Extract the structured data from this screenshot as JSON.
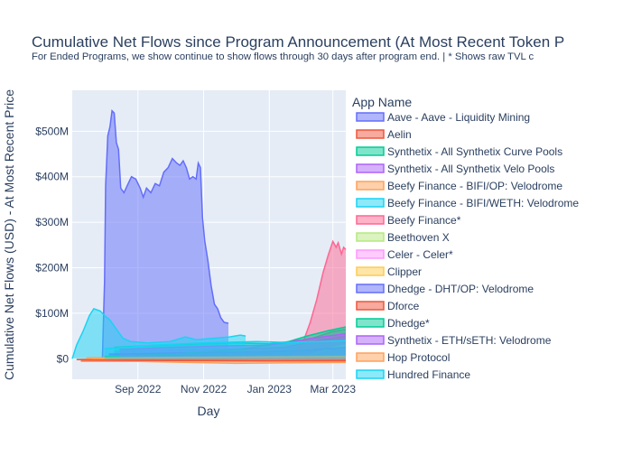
{
  "chart_data": {
    "type": "area",
    "title": "Cumulative Net Flows since Program Announcement (At Most Recent Token P",
    "subtitle": "For Ended Programs, we show continue to show flows through 30 days after program end. | * Shows raw TVL c",
    "xlabel": "Day",
    "ylabel": "Cumulative Net Flows (USD) - At Most Recent Price",
    "x_range": [
      "2022-07-02",
      "2023-03-13"
    ],
    "ylim": [
      -45,
      590
    ],
    "y_unit": "million USD",
    "x_ticks": [
      {
        "date": "2022-09-01",
        "label": "Sep 2022"
      },
      {
        "date": "2022-11-01",
        "label": "Nov 2022"
      },
      {
        "date": "2023-01-01",
        "label": "Jan 2023"
      },
      {
        "date": "2023-03-01",
        "label": "Mar 2023"
      }
    ],
    "y_ticks": [
      {
        "value": 0,
        "label": "$0"
      },
      {
        "value": 100,
        "label": "$100M"
      },
      {
        "value": 200,
        "label": "$200M"
      },
      {
        "value": 300,
        "label": "$300M"
      },
      {
        "value": 400,
        "label": "$400M"
      },
      {
        "value": 500,
        "label": "$500M"
      }
    ],
    "legend_title": "App Name",
    "legend_position": "right",
    "grid": true,
    "series": [
      {
        "name": "Aave - Aave - Liquidity Mining",
        "color": "#636efa",
        "points": [
          [
            "2022-07-30",
            0
          ],
          [
            "2022-08-01",
            170
          ],
          [
            "2022-08-02",
            380
          ],
          [
            "2022-08-04",
            490
          ],
          [
            "2022-08-06",
            510
          ],
          [
            "2022-08-08",
            545
          ],
          [
            "2022-08-10",
            540
          ],
          [
            "2022-08-12",
            475
          ],
          [
            "2022-08-14",
            460
          ],
          [
            "2022-08-16",
            375
          ],
          [
            "2022-08-19",
            365
          ],
          [
            "2022-08-22",
            380
          ],
          [
            "2022-08-26",
            400
          ],
          [
            "2022-08-30",
            395
          ],
          [
            "2022-09-03",
            375
          ],
          [
            "2022-09-06",
            355
          ],
          [
            "2022-09-09",
            375
          ],
          [
            "2022-09-13",
            365
          ],
          [
            "2022-09-17",
            385
          ],
          [
            "2022-09-21",
            380
          ],
          [
            "2022-09-25",
            410
          ],
          [
            "2022-09-29",
            420
          ],
          [
            "2022-10-03",
            440
          ],
          [
            "2022-10-07",
            430
          ],
          [
            "2022-10-10",
            425
          ],
          [
            "2022-10-13",
            435
          ],
          [
            "2022-10-16",
            420
          ],
          [
            "2022-10-19",
            395
          ],
          [
            "2022-10-22",
            400
          ],
          [
            "2022-10-25",
            395
          ],
          [
            "2022-10-27",
            430
          ],
          [
            "2022-10-29",
            420
          ],
          [
            "2022-10-31",
            310
          ],
          [
            "2022-11-02",
            260
          ],
          [
            "2022-11-05",
            215
          ],
          [
            "2022-11-08",
            160
          ],
          [
            "2022-11-11",
            120
          ],
          [
            "2022-11-14",
            110
          ],
          [
            "2022-11-17",
            90
          ],
          [
            "2022-11-20",
            80
          ],
          [
            "2022-11-24",
            78
          ]
        ]
      },
      {
        "name": "Aelin",
        "color": "#ef553b",
        "points": [
          [
            "2022-07-06",
            -2
          ],
          [
            "2022-09-01",
            -3
          ],
          [
            "2022-12-01",
            -4
          ],
          [
            "2023-02-01",
            -5
          ],
          [
            "2023-03-13",
            -5
          ]
        ]
      },
      {
        "name": "Synthetix - All Synthetix Curve Pools",
        "color": "#00cc96",
        "points": [
          [
            "2022-08-10",
            25
          ],
          [
            "2022-09-01",
            28
          ],
          [
            "2022-10-01",
            30
          ],
          [
            "2022-11-01",
            33
          ],
          [
            "2022-12-01",
            35
          ],
          [
            "2023-01-01",
            33
          ],
          [
            "2023-01-20",
            38
          ],
          [
            "2023-02-10",
            45
          ],
          [
            "2023-03-01",
            60
          ],
          [
            "2023-03-13",
            65
          ]
        ]
      },
      {
        "name": "Synthetix - All Synthetix Velo Pools",
        "color": "#ab63fa",
        "points": [
          [
            "2022-08-10",
            15
          ],
          [
            "2022-09-15",
            18
          ],
          [
            "2022-11-01",
            20
          ],
          [
            "2022-12-15",
            22
          ],
          [
            "2023-01-15",
            25
          ],
          [
            "2023-02-15",
            40
          ],
          [
            "2023-03-13",
            50
          ]
        ]
      },
      {
        "name": "Beefy Finance - BIFI/OP: Velodrome",
        "color": "#ffa15a",
        "points": [
          [
            "2022-07-10",
            -6
          ],
          [
            "2022-09-01",
            -6
          ],
          [
            "2022-12-01",
            -10
          ],
          [
            "2023-01-15",
            -9
          ],
          [
            "2023-03-13",
            -8
          ]
        ]
      },
      {
        "name": "Beefy Finance - BIFI/WETH: Velodrome",
        "color": "#19d3f3",
        "points": [
          [
            "2022-07-02",
            0
          ],
          [
            "2022-07-06",
            30
          ],
          [
            "2022-07-12",
            60
          ],
          [
            "2022-07-18",
            95
          ],
          [
            "2022-07-22",
            110
          ],
          [
            "2022-07-28",
            105
          ],
          [
            "2022-08-01",
            95
          ],
          [
            "2022-08-06",
            85
          ],
          [
            "2022-08-12",
            65
          ],
          [
            "2022-08-18",
            45
          ],
          [
            "2022-08-25",
            38
          ],
          [
            "2022-09-10",
            35
          ],
          [
            "2022-10-01",
            38
          ],
          [
            "2022-10-15",
            48
          ],
          [
            "2022-10-25",
            42
          ],
          [
            "2022-11-10",
            45
          ],
          [
            "2022-11-25",
            48
          ],
          [
            "2022-12-05",
            52
          ],
          [
            "2022-12-10",
            50
          ]
        ]
      },
      {
        "name": "Beefy Finance*",
        "color": "#ff6692",
        "points": [
          [
            "2023-01-15",
            0
          ],
          [
            "2023-01-25",
            15
          ],
          [
            "2023-02-01",
            35
          ],
          [
            "2023-02-08",
            80
          ],
          [
            "2023-02-14",
            130
          ],
          [
            "2023-02-20",
            190
          ],
          [
            "2023-02-25",
            230
          ],
          [
            "2023-03-01",
            258
          ],
          [
            "2023-03-04",
            245
          ],
          [
            "2023-03-06",
            255
          ],
          [
            "2023-03-09",
            230
          ],
          [
            "2023-03-11",
            245
          ],
          [
            "2023-03-13",
            240
          ]
        ]
      },
      {
        "name": "Beethoven X",
        "color": "#b6e880",
        "points": [
          [
            "2023-01-20",
            0
          ],
          [
            "2023-02-10",
            10
          ],
          [
            "2023-03-01",
            25
          ],
          [
            "2023-03-13",
            30
          ]
        ]
      },
      {
        "name": "Celer - Celer*",
        "color": "#ff97ff",
        "points": [
          [
            "2022-08-01",
            2
          ],
          [
            "2022-11-01",
            4
          ],
          [
            "2023-02-01",
            6
          ],
          [
            "2023-03-13",
            8
          ]
        ]
      },
      {
        "name": "Clipper",
        "color": "#fecb52",
        "points": [
          [
            "2022-07-20",
            0
          ],
          [
            "2022-10-01",
            1
          ],
          [
            "2023-01-01",
            1
          ],
          [
            "2023-03-13",
            2
          ]
        ]
      },
      {
        "name": "Dhedge - DHT/OP: Velodrome",
        "color": "#636efa",
        "points": [
          [
            "2022-08-05",
            10
          ],
          [
            "2022-09-20",
            12
          ],
          [
            "2022-11-01",
            14
          ],
          [
            "2022-12-20",
            15
          ],
          [
            "2023-02-01",
            18
          ],
          [
            "2023-03-13",
            25
          ]
        ]
      },
      {
        "name": "Dforce",
        "color": "#ef553b",
        "points": [
          [
            "2022-07-10",
            -3
          ],
          [
            "2022-10-01",
            -4
          ],
          [
            "2023-01-01",
            -5
          ],
          [
            "2023-03-13",
            -4
          ]
        ]
      },
      {
        "name": "Dhedge*",
        "color": "#00cc96",
        "points": [
          [
            "2022-08-01",
            5
          ],
          [
            "2022-10-01",
            10
          ],
          [
            "2022-12-01",
            20
          ],
          [
            "2023-01-15",
            35
          ],
          [
            "2023-02-05",
            50
          ],
          [
            "2023-02-25",
            62
          ],
          [
            "2023-03-13",
            70
          ]
        ]
      },
      {
        "name": "Synthetix - ETH/sETH: Velodrome",
        "color": "#ab63fa",
        "points": [
          [
            "2022-08-15",
            20
          ],
          [
            "2022-10-01",
            25
          ],
          [
            "2022-11-15",
            28
          ],
          [
            "2023-01-01",
            30
          ],
          [
            "2023-02-10",
            45
          ],
          [
            "2023-03-13",
            55
          ]
        ]
      },
      {
        "name": "Hop Protocol",
        "color": "#ffa15a",
        "points": [
          [
            "2022-07-15",
            2
          ],
          [
            "2022-10-01",
            3
          ],
          [
            "2023-01-01",
            4
          ],
          [
            "2023-03-13",
            5
          ]
        ]
      },
      {
        "name": "Hundred Finance",
        "color": "#19d3f3",
        "points": [
          [
            "2022-08-01",
            22
          ],
          [
            "2022-09-15",
            30
          ],
          [
            "2022-11-01",
            35
          ],
          [
            "2022-12-20",
            38
          ],
          [
            "2023-01-20",
            36
          ],
          [
            "2023-03-13",
            40
          ]
        ]
      }
    ]
  }
}
